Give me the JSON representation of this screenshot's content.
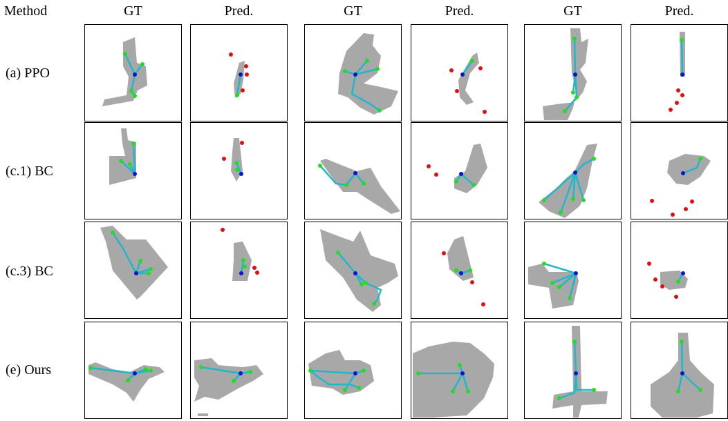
{
  "header": {
    "method_label": "Method",
    "columns": [
      "GT",
      "Pred.",
      "GT",
      "Pred.",
      "GT",
      "Pred."
    ]
  },
  "rows": [
    {
      "label": "(a) PPO"
    },
    {
      "label": "(c.1) BC"
    },
    {
      "label": "(c.3) BC"
    },
    {
      "label": "(e) Ours"
    }
  ],
  "colors": {
    "explored_area": "#a8a8a8",
    "trajectory": "#1fb7c9",
    "agent_start": "#0a14c8",
    "goal_reached": "#22dd22",
    "goal_missed": "#e01010"
  }
}
